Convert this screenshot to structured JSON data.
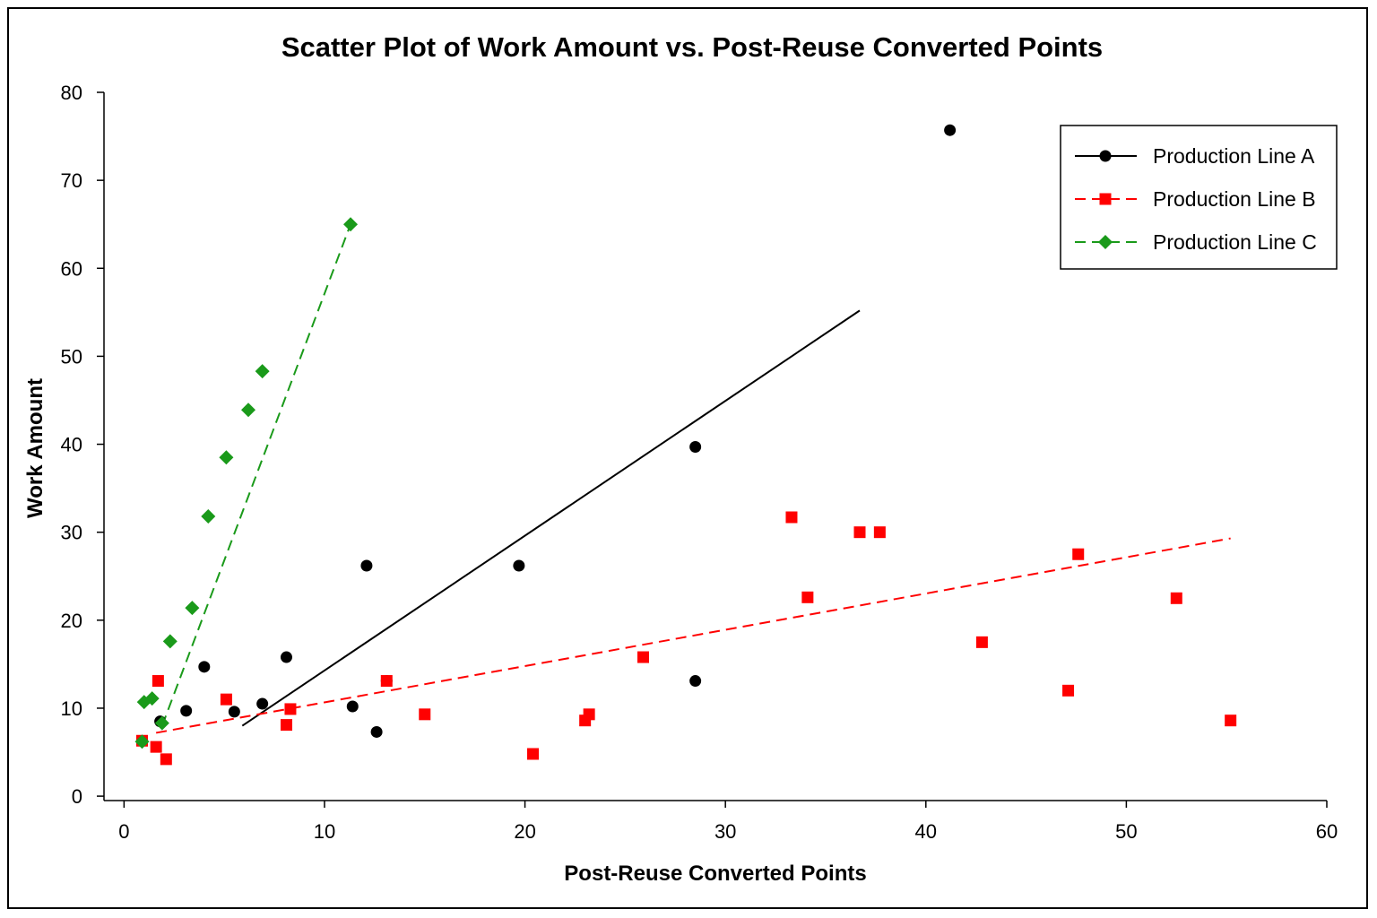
{
  "chart_data": {
    "type": "scatter",
    "title": "Scatter Plot of Work Amount vs. Post-Reuse Converted Points",
    "xlabel": "Post-Reuse Converted Points",
    "ylabel": "Work Amount",
    "xlim": [
      -1,
      60
    ],
    "ylim": [
      -0.5,
      80
    ],
    "xticks": [
      0,
      10,
      20,
      30,
      40,
      50,
      60
    ],
    "yticks": [
      0,
      10,
      20,
      30,
      40,
      50,
      60,
      70,
      80
    ],
    "grid": false,
    "legend_position": "top-right",
    "series": [
      {
        "name": "Production Line A",
        "color": "#000000",
        "marker": "circle",
        "line_style": "solid",
        "points": [
          [
            1.8,
            8.5
          ],
          [
            3.1,
            9.7
          ],
          [
            4.0,
            14.7
          ],
          [
            5.5,
            9.6
          ],
          [
            6.9,
            10.5
          ],
          [
            8.1,
            15.8
          ],
          [
            11.4,
            10.2
          ],
          [
            12.1,
            26.2
          ],
          [
            12.6,
            7.3
          ],
          [
            13.1,
            13.1
          ],
          [
            19.7,
            26.2
          ],
          [
            28.5,
            39.7
          ],
          [
            28.5,
            13.1
          ],
          [
            41.2,
            75.7
          ]
        ],
        "trendline": [
          [
            5.9,
            8.0
          ],
          [
            36.7,
            55.2
          ]
        ]
      },
      {
        "name": "Production Line B",
        "color": "#ff0000",
        "marker": "square",
        "line_style": "dashed",
        "points": [
          [
            0.9,
            6.3
          ],
          [
            1.6,
            5.6
          ],
          [
            1.7,
            13.1
          ],
          [
            2.1,
            4.2
          ],
          [
            5.1,
            11.0
          ],
          [
            8.1,
            8.1
          ],
          [
            8.3,
            9.9
          ],
          [
            13.1,
            13.1
          ],
          [
            15.0,
            9.3
          ],
          [
            20.4,
            4.8
          ],
          [
            23.0,
            8.6
          ],
          [
            23.2,
            9.3
          ],
          [
            25.9,
            15.8
          ],
          [
            33.3,
            31.7
          ],
          [
            34.1,
            22.6
          ],
          [
            36.7,
            30.0
          ],
          [
            37.7,
            30.0
          ],
          [
            42.8,
            17.5
          ],
          [
            47.1,
            12.0
          ],
          [
            47.6,
            27.5
          ],
          [
            52.5,
            22.5
          ],
          [
            55.2,
            8.6
          ]
        ],
        "trendline": [
          [
            1.6,
            7.2
          ],
          [
            55.2,
            29.3
          ]
        ]
      },
      {
        "name": "Production Line C",
        "color": "#1a9a1a",
        "marker": "diamond",
        "line_style": "dashed",
        "points": [
          [
            0.9,
            6.2
          ],
          [
            1.0,
            10.7
          ],
          [
            1.4,
            11.1
          ],
          [
            1.9,
            8.3
          ],
          [
            2.3,
            17.6
          ],
          [
            3.4,
            21.4
          ],
          [
            4.2,
            31.8
          ],
          [
            5.1,
            38.5
          ],
          [
            6.2,
            43.9
          ],
          [
            6.9,
            48.3
          ],
          [
            11.3,
            65.0
          ]
        ],
        "trendline": [
          [
            1.9,
            8.0
          ],
          [
            11.3,
            65.0
          ]
        ]
      }
    ]
  }
}
